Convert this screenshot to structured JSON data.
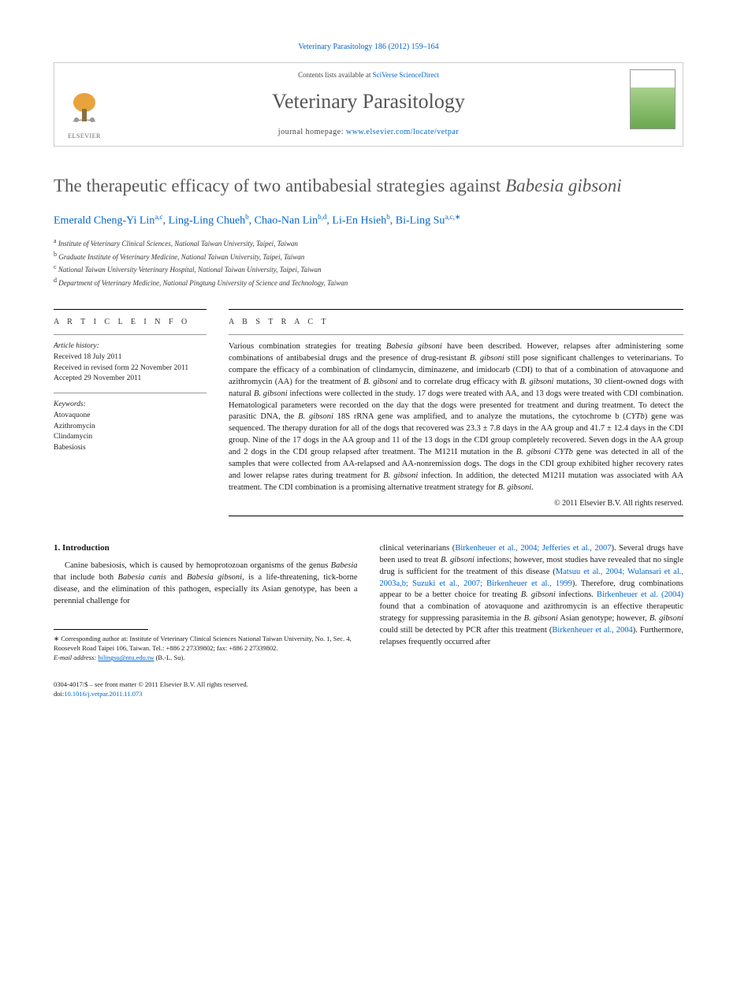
{
  "journal_ref": "Veterinary Parasitology 186 (2012) 159–164",
  "header": {
    "contents_prefix": "Contents lists available at ",
    "contents_link": "SciVerse ScienceDirect",
    "journal_name": "Veterinary Parasitology",
    "homepage_prefix": "journal homepage: ",
    "homepage_url": "www.elsevier.com/locate/vetpar",
    "publisher": "ELSEVIER"
  },
  "title_main": "The therapeutic efficacy of two antibabesial strategies against ",
  "title_italic": "Babesia gibsoni",
  "authors": [
    {
      "name": "Emerald Cheng-Yi Lin",
      "aff": "a,c"
    },
    {
      "name": "Ling-Ling Chueh",
      "aff": "b"
    },
    {
      "name": "Chao-Nan Lin",
      "aff": "b,d"
    },
    {
      "name": "Li-En Hsieh",
      "aff": "b"
    },
    {
      "name": "Bi-Ling Su",
      "aff": "a,c,",
      "corr": true
    }
  ],
  "affiliations": [
    {
      "sup": "a",
      "text": "Institute of Veterinary Clinical Sciences, National Taiwan University, Taipei, Taiwan"
    },
    {
      "sup": "b",
      "text": "Graduate Institute of Veterinary Medicine, National Taiwan University, Taipei, Taiwan"
    },
    {
      "sup": "c",
      "text": "National Taiwan University Veterinary Hospital, National Taiwan University, Taipei, Taiwan"
    },
    {
      "sup": "d",
      "text": "Department of Veterinary Medicine, National Pingtung University of Science and Technology, Taiwan"
    }
  ],
  "article_info": {
    "head": "A R T I C L E  I N F O",
    "history_label": "Article history:",
    "received": "Received 18 July 2011",
    "revised": "Received in revised form 22 November 2011",
    "accepted": "Accepted 29 November 2011",
    "keywords_label": "Keywords:",
    "keywords": [
      "Atovaquone",
      "Azithromycin",
      "Clindamycin",
      "Babesiosis"
    ]
  },
  "abstract": {
    "head": "A B S T R A C T",
    "text_parts": [
      {
        "t": "Various combination strategies for treating "
      },
      {
        "t": "Babesia gibsoni",
        "i": true
      },
      {
        "t": " have been described. However, relapses after administering some combinations of antibabesial drugs and the presence of drug-resistant "
      },
      {
        "t": "B. gibsoni",
        "i": true
      },
      {
        "t": " still pose significant challenges to veterinarians. To compare the efficacy of a combination of clindamycin, diminazene, and imidocarb (CDI) to that of a combination of atovaquone and azithromycin (AA) for the treatment of "
      },
      {
        "t": "B. gibsoni",
        "i": true
      },
      {
        "t": " and to correlate drug efficacy with "
      },
      {
        "t": "B. gibsoni",
        "i": true
      },
      {
        "t": " mutations, 30 client-owned dogs with natural "
      },
      {
        "t": "B. gibsoni",
        "i": true
      },
      {
        "t": " infections were collected in the study. 17 dogs were treated with AA, and 13 dogs were treated with CDI combination. Hematological parameters were recorded on the day that the dogs were presented for treatment and during treatment. To detect the parasitic DNA, the "
      },
      {
        "t": "B. gibsoni",
        "i": true
      },
      {
        "t": " 18S rRNA gene was amplified, and to analyze the mutations, the cytochrome b ("
      },
      {
        "t": "CYTb",
        "i": true
      },
      {
        "t": ") gene was sequenced. The therapy duration for all of the dogs that recovered was 23.3 ± 7.8 days in the AA group and 41.7 ± 12.4 days in the CDI group. Nine of the 17 dogs in the AA group and 11 of the 13 dogs in the CDI group completely recovered. Seven dogs in the AA group and 2 dogs in the CDI group relapsed after treatment. The M121I mutation in the "
      },
      {
        "t": "B. gibsoni CYTb",
        "i": true
      },
      {
        "t": " gene was detected in all of the samples that were collected from AA-relapsed and AA-nonremission dogs. The dogs in the CDI group exhibited higher recovery rates and lower relapse rates during treatment for "
      },
      {
        "t": "B. gibsoni",
        "i": true
      },
      {
        "t": " infection. In addition, the detected M121I mutation was associated with AA treatment. The CDI combination is a promising alternative treatment strategy for "
      },
      {
        "t": "B. gibsoni",
        "i": true
      },
      {
        "t": "."
      }
    ],
    "copyright": "© 2011 Elsevier B.V. All rights reserved."
  },
  "body": {
    "section_number": "1.",
    "section_title": "Introduction",
    "col1_parts": [
      {
        "t": "Canine babesiosis, which is caused by hemoprotozoan organisms of the genus "
      },
      {
        "t": "Babesia",
        "i": true
      },
      {
        "t": " that include both "
      },
      {
        "t": "Babesia canis",
        "i": true
      },
      {
        "t": " and "
      },
      {
        "t": "Babesia gibsoni",
        "i": true
      },
      {
        "t": ", is a life-threatening, tick-borne disease, and the elimination of this pathogen, especially its Asian genotype, has been a perennial challenge for"
      }
    ],
    "col2_parts": [
      {
        "t": "clinical veterinarians ("
      },
      {
        "t": "Birkenheuer et al., 2004; Jefferies et al., 2007",
        "link": true
      },
      {
        "t": "). Several drugs have been used to treat "
      },
      {
        "t": "B. gibsoni",
        "i": true
      },
      {
        "t": " infections; however, most studies have revealed that no single drug is sufficient for the treatment of this disease ("
      },
      {
        "t": "Matsuu et al., 2004; Wulansari et al., 2003a,b; Suzuki et al., 2007; Birkenheuer et al., 1999",
        "link": true
      },
      {
        "t": "). Therefore, drug combinations appear to be a better choice for treating "
      },
      {
        "t": "B. gibsoni",
        "i": true
      },
      {
        "t": " infections. "
      },
      {
        "t": "Birkenheuer et al. (2004)",
        "link": true
      },
      {
        "t": " found that a combination of atovaquone and azithromycin is an effective therapeutic strategy for suppressing parasitemia in the "
      },
      {
        "t": "B. gibsoni",
        "i": true
      },
      {
        "t": " Asian genotype; however, "
      },
      {
        "t": "B. gibsoni",
        "i": true
      },
      {
        "t": " could still be detected by PCR after this treatment ("
      },
      {
        "t": "Birkenheuer et al., 2004",
        "link": true
      },
      {
        "t": "). Furthermore, relapses frequently occurred after"
      }
    ]
  },
  "footnotes": {
    "corr_label": "∗",
    "corr_text": "Corresponding author at: Institute of Veterinary Clinical Sciences National Taiwan University, No. 1, Sec. 4, Roosevelt Road Taipei 106, Taiwan. Tel.: +886 2 27339802; fax: +886 2 27339802.",
    "email_label": "E-mail address:",
    "email": "bilingsu@ntu.edu.tw",
    "email_suffix": "(B.-L. Su)."
  },
  "bottom": {
    "issn_line": "0304-4017/$ – see front matter © 2011 Elsevier B.V. All rights reserved.",
    "doi_prefix": "doi:",
    "doi": "10.1016/j.vetpar.2011.11.073"
  },
  "colors": {
    "link": "#0066cc",
    "title_gray": "#5a5a5a",
    "text": "#1a1a1a"
  }
}
